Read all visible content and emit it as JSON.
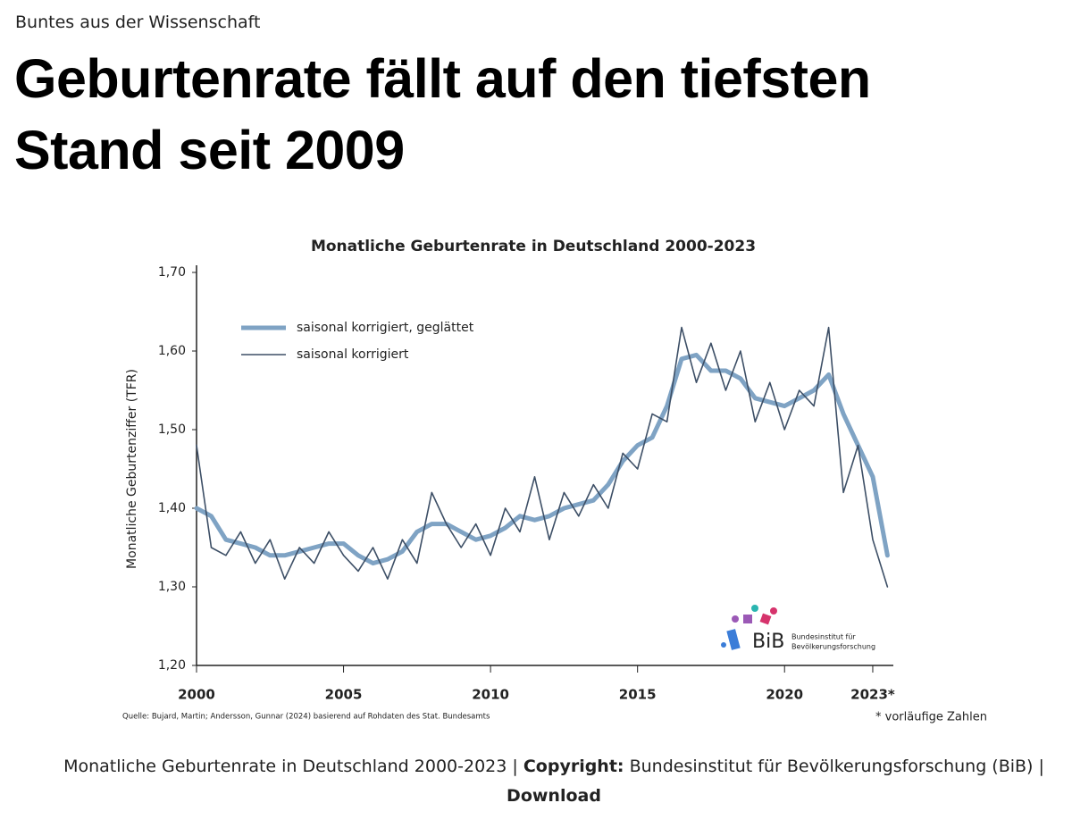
{
  "header": {
    "kicker": "Buntes aus der Wissenschaft",
    "title_line1": "Geburtenrate fällt auf den tiefsten",
    "title_line2": "Stand seit 2009"
  },
  "chart_data": {
    "type": "line",
    "title": "Monatliche Geburtenrate in Deutschland 2000-2023",
    "y_label": "Monatliche Geburtenziffer (TFR)",
    "source": "Quelle: Bujard, Martin; Andersson, Gunnar (2024) basierend auf Rohdaten des Stat. Bundesamts",
    "note": "* vorläufige Zahlen",
    "logo": {
      "abbr": "BiB",
      "name_line1": "Bundesinstitut für",
      "name_line2": "Bevölkerungsforschung"
    },
    "x": [
      2000,
      2000.5,
      2001,
      2001.5,
      2002,
      2002.5,
      2003,
      2003.5,
      2004,
      2004.5,
      2005,
      2005.5,
      2006,
      2006.5,
      2007,
      2007.5,
      2008,
      2008.5,
      2009,
      2009.5,
      2010,
      2010.5,
      2011,
      2011.5,
      2012,
      2012.5,
      2013,
      2013.5,
      2014,
      2014.5,
      2015,
      2015.5,
      2016,
      2016.5,
      2017,
      2017.5,
      2018,
      2018.5,
      2019,
      2019.5,
      2020,
      2020.5,
      2021,
      2021.5,
      2022,
      2022.5,
      2023,
      2023.5
    ],
    "series": [
      {
        "name": "saisonal korrigiert, geglättet",
        "color": "#7fa3c4",
        "width": 5,
        "values": [
          1.4,
          1.39,
          1.36,
          1.355,
          1.35,
          1.34,
          1.34,
          1.345,
          1.35,
          1.355,
          1.355,
          1.34,
          1.33,
          1.335,
          1.345,
          1.37,
          1.38,
          1.38,
          1.37,
          1.36,
          1.365,
          1.375,
          1.39,
          1.385,
          1.39,
          1.4,
          1.405,
          1.41,
          1.43,
          1.46,
          1.48,
          1.49,
          1.53,
          1.59,
          1.595,
          1.575,
          1.575,
          1.565,
          1.54,
          1.535,
          1.53,
          1.54,
          1.55,
          1.57,
          1.52,
          1.48,
          1.44,
          1.34
        ]
      },
      {
        "name": "saisonal korrigiert",
        "color": "#3d4f66",
        "width": 1.6,
        "values": [
          1.48,
          1.35,
          1.34,
          1.37,
          1.33,
          1.36,
          1.31,
          1.35,
          1.33,
          1.37,
          1.34,
          1.32,
          1.35,
          1.31,
          1.36,
          1.33,
          1.42,
          1.38,
          1.35,
          1.38,
          1.34,
          1.4,
          1.37,
          1.44,
          1.36,
          1.42,
          1.39,
          1.43,
          1.4,
          1.47,
          1.45,
          1.52,
          1.51,
          1.63,
          1.56,
          1.61,
          1.55,
          1.6,
          1.51,
          1.56,
          1.5,
          1.55,
          1.53,
          1.63,
          1.42,
          1.48,
          1.36,
          1.3
        ]
      }
    ],
    "xlim": [
      2000,
      2023.7
    ],
    "xticks": [
      2000,
      2005,
      2010,
      2015,
      2020,
      {
        "value": 2023,
        "label": "2023*"
      }
    ],
    "ylim": [
      1.2,
      1.7
    ],
    "yticks": [
      {
        "value": 1.2,
        "label": "1,20"
      },
      {
        "value": 1.3,
        "label": "1,30"
      },
      {
        "value": 1.4,
        "label": "1,40"
      },
      {
        "value": 1.5,
        "label": "1,50"
      },
      {
        "value": 1.6,
        "label": "1,60"
      },
      {
        "value": 1.7,
        "label": "1,70"
      }
    ],
    "grid": false,
    "legend": "upper left"
  },
  "caption": {
    "text": "Monatliche Geburtenrate in Deutschland 2000-2023",
    "sep1": "|",
    "copyright_label": "Copyright:",
    "copyright_holder": "Bundesinstitut für Bevölkerungsforschung (BiB)",
    "sep2": "|",
    "download": "Download"
  }
}
